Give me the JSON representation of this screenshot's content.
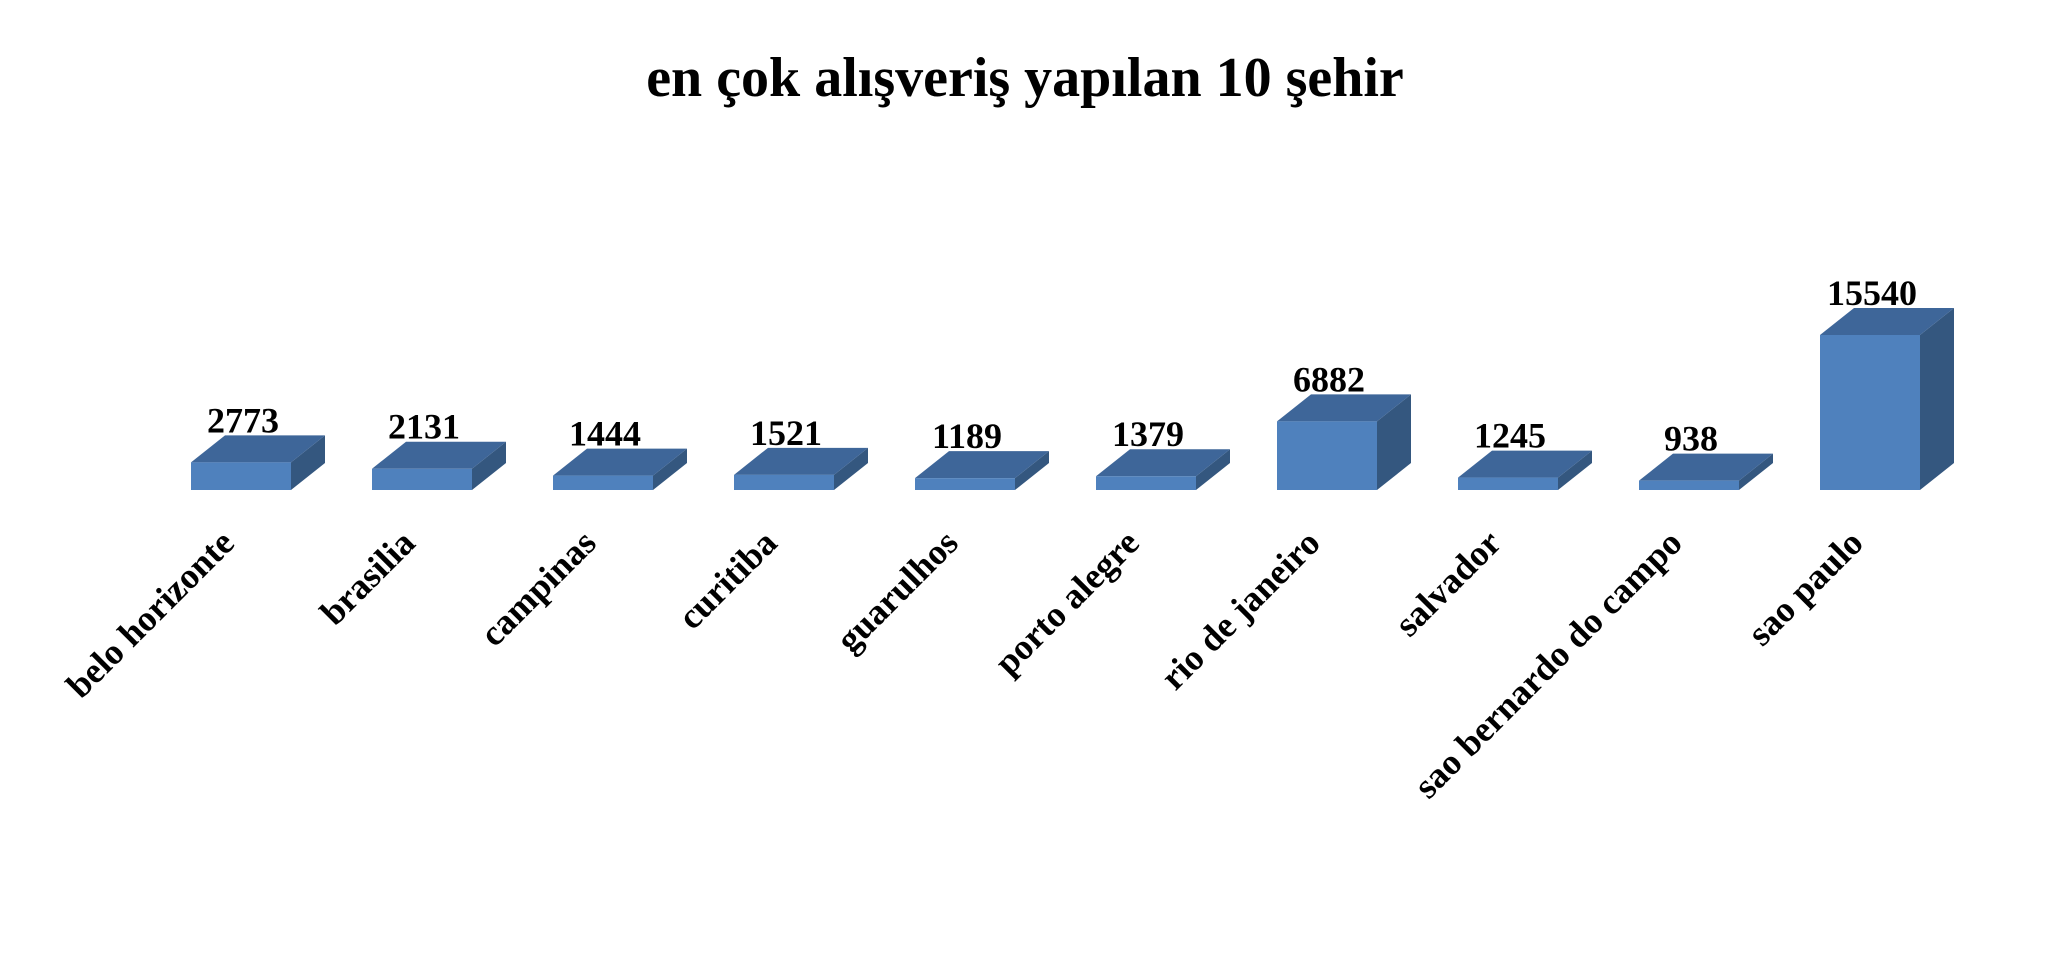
{
  "chart_data": {
    "type": "bar",
    "title": "en çok alışveriş yapılan 10 şehir",
    "xlabel": "",
    "ylabel": "",
    "categories": [
      "belo horizonte",
      "brasilia",
      "campinas",
      "curitiba",
      "guarulhos",
      "porto alegre",
      "rio de janeiro",
      "salvador",
      "sao bernardo do campo",
      "sao paulo"
    ],
    "values": [
      2773,
      2131,
      1444,
      1521,
      1189,
      1379,
      6882,
      1245,
      938,
      15540
    ],
    "grid": false,
    "legend": "none",
    "style": "3d-column",
    "colors": {
      "front": "#4F81BD",
      "top": "#3E6699",
      "side": "#34577F"
    }
  }
}
